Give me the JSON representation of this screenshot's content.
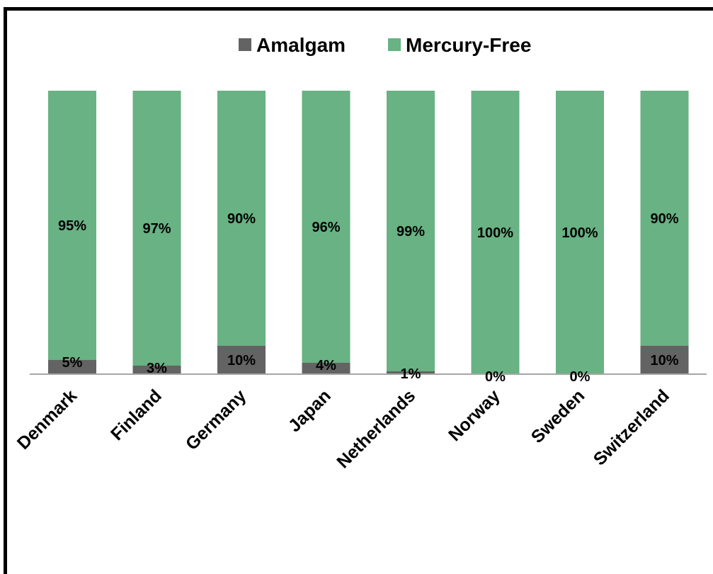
{
  "chart_data": {
    "type": "bar",
    "stacked": true,
    "categories": [
      "Denmark",
      "Finland",
      "Germany",
      "Japan",
      "Netherlands",
      "Norway",
      "Sweden",
      "Switzerland"
    ],
    "series": [
      {
        "name": "Amalgam",
        "color": "#636363",
        "values": [
          5,
          3,
          10,
          4,
          1,
          0,
          0,
          10
        ],
        "labels": [
          "5%",
          "3%",
          "10%",
          "4%",
          "1%",
          "0%",
          "0%",
          "10%"
        ]
      },
      {
        "name": "Mercury-Free",
        "color": "#68b283",
        "values": [
          95,
          97,
          90,
          96,
          99,
          100,
          100,
          90
        ],
        "labels": [
          "95%",
          "97%",
          "90%",
          "96%",
          "99%",
          "100%",
          "100%",
          "90%"
        ]
      }
    ],
    "ylim": [
      0,
      100
    ],
    "legend": "top",
    "grid": false,
    "title": "",
    "xlabel": "",
    "ylabel": ""
  }
}
